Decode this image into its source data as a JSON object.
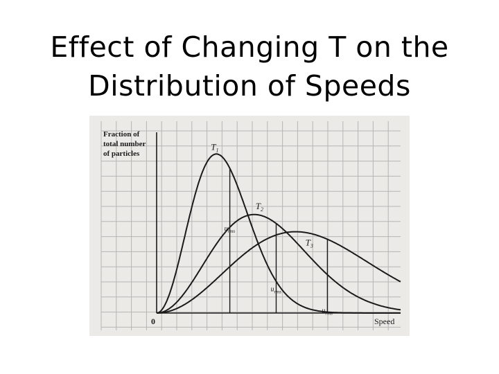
{
  "slide": {
    "title_line1": "Effect of Changing T on  the",
    "title_line2": "Distribution of Speeds"
  },
  "chart_data": {
    "type": "line",
    "title": "",
    "ylabel_lines": [
      "Fraction of",
      "total number",
      "of particles"
    ],
    "xlabel": "Speed",
    "origin_label": "0",
    "grid": true,
    "colors": {
      "curve": "#1a1a1a",
      "grid": "#b5b5b5",
      "background": "#eceae6"
    },
    "series": [
      {
        "name": "T1",
        "label_main": "T",
        "label_sub": "1",
        "peak_x": 0.245,
        "peak_y": 0.88
      },
      {
        "name": "T2",
        "label_main": "T",
        "label_sub": "2",
        "peak_x": 0.4,
        "peak_y": 0.545
      },
      {
        "name": "T3",
        "label_main": "T",
        "label_sub": "3",
        "peak_x": 0.57,
        "peak_y": 0.45
      }
    ],
    "rms_markers": [
      {
        "label_main": "u",
        "label_sub": "rms",
        "x": 0.3,
        "series": "T1"
      },
      {
        "label_main": "u",
        "label_sub": "rms",
        "x": 0.49,
        "series": "T2"
      },
      {
        "label_main": "u",
        "label_sub": "rms",
        "x": 0.7,
        "series": "T3"
      }
    ]
  }
}
